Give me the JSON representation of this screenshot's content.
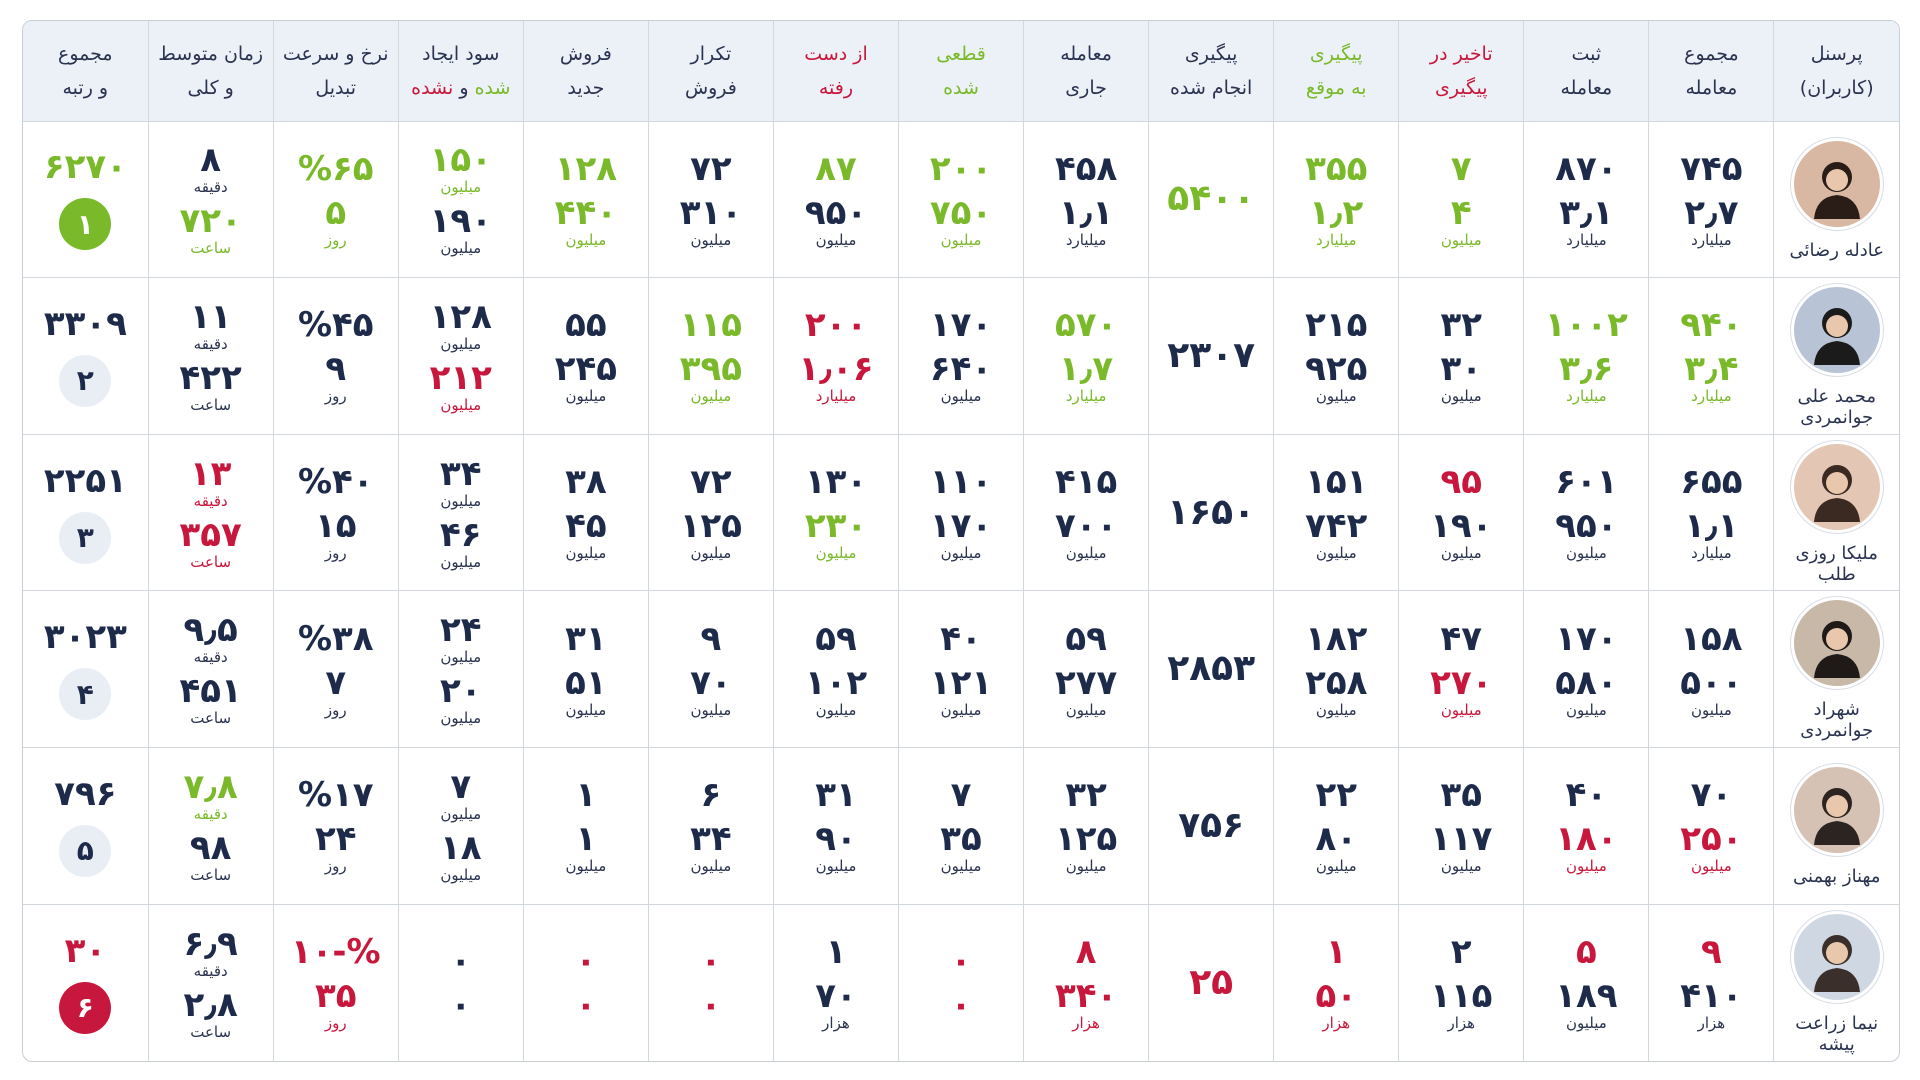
{
  "headers": {
    "person": [
      "پرسنل",
      "(کاربران)"
    ],
    "total_deals": [
      "مجموع",
      "معامله"
    ],
    "registered": [
      "ثبت",
      "معامله"
    ],
    "late_followup": [
      "تاخیر در",
      "پیگیری"
    ],
    "ontime_followup": [
      "پیگیری",
      "به موقع"
    ],
    "done_followup": [
      "پیگیری",
      "انجام شده"
    ],
    "current_deals": [
      "معامله",
      "جاری"
    ],
    "finalized": [
      "قطعی",
      "شده"
    ],
    "lost": [
      "از دست",
      "رفته"
    ],
    "repeat_sales": [
      "تکرار",
      "فروش"
    ],
    "new_sales": [
      "فروش",
      "جدید"
    ],
    "profit": {
      "line1": "سود ایجاد",
      "line2_a": "شده",
      "line2_b": " و ",
      "line2_c": "نشده"
    },
    "conversion": [
      "نرخ و سرعت",
      "تبدیل"
    ],
    "avg_time": [
      "زمان متوسط",
      "و کلی"
    ],
    "total_rank": [
      "مجموع",
      "و رتبه"
    ]
  },
  "colors": {
    "green": "#7ab929",
    "red": "#c8173c",
    "navy": "#1e2a4a",
    "rank_neutral": "#e8eef4"
  },
  "rows": [
    {
      "name": "عادله رضائی",
      "total_deals": {
        "a": "۷۴۵",
        "b": "۲٫۷",
        "u": "میلیارد",
        "ca": "",
        "cb": ""
      },
      "registered": {
        "a": "۸۷۰",
        "b": "۳٫۱",
        "u": "میلیارد",
        "ca": "",
        "cb": ""
      },
      "late_followup": {
        "a": "۷",
        "b": "۴",
        "u": "میلیون",
        "ca": "g",
        "cb": "g"
      },
      "ontime_followup": {
        "a": "۳۵۵",
        "b": "۱٫۲",
        "u": "میلیارد",
        "ca": "g",
        "cb": "g"
      },
      "done_followup": {
        "v": "۵۴۰۰",
        "c": "g"
      },
      "current_deals": {
        "a": "۴۵۸",
        "b": "۱٫۱",
        "u": "میلیارد",
        "ca": "",
        "cb": ""
      },
      "finalized": {
        "a": "۲۰۰",
        "b": "۷۵۰",
        "u": "میلیون",
        "ca": "g",
        "cb": "g"
      },
      "lost": {
        "a": "۸۷",
        "b": "۹۵۰",
        "u": "میلیون",
        "ca": "g",
        "cb": ""
      },
      "repeat_sales": {
        "a": "۷۲",
        "b": "۳۱۰",
        "u": "میلیون",
        "ca": "",
        "cb": ""
      },
      "new_sales": {
        "a": "۱۲۸",
        "b": "۴۴۰",
        "u": "میلیون",
        "ca": "g",
        "cb": "g"
      },
      "profit": {
        "a": "۱۵۰",
        "au": "میلیون",
        "b": "۱۹۰",
        "bu": "میلیون",
        "ca": "g",
        "cb": ""
      },
      "conversion": {
        "a": "%۶۵",
        "b": "۵",
        "u": "روز",
        "ca": "g",
        "cb": "g"
      },
      "avg_time": {
        "a": "۸",
        "au": "دقیقه",
        "b": "۷۲۰",
        "bu": "ساعت",
        "ca": "",
        "cb": "g"
      },
      "total": {
        "v": "۶۲۷۰",
        "rank": "۱",
        "c": "g",
        "rank_style": "green"
      }
    },
    {
      "name": "محمد علی جوانمردی",
      "total_deals": {
        "a": "۹۴۰",
        "b": "۳٫۴",
        "u": "میلیارد",
        "ca": "g",
        "cb": "g"
      },
      "registered": {
        "a": "۱۰۰۲",
        "b": "۳٫۶",
        "u": "میلیارد",
        "ca": "g",
        "cb": "g"
      },
      "late_followup": {
        "a": "۳۲",
        "b": "۳۰",
        "u": "میلیون",
        "ca": "",
        "cb": ""
      },
      "ontime_followup": {
        "a": "۲۱۵",
        "b": "۹۲۵",
        "u": "میلیون",
        "ca": "",
        "cb": ""
      },
      "done_followup": {
        "v": "۲۳۰۷",
        "c": ""
      },
      "current_deals": {
        "a": "۵۷۰",
        "b": "۱٫۷",
        "u": "میلیارد",
        "ca": "g",
        "cb": "g"
      },
      "finalized": {
        "a": "۱۷۰",
        "b": "۶۴۰",
        "u": "میلیون",
        "ca": "",
        "cb": ""
      },
      "lost": {
        "a": "۲۰۰",
        "b": "۱٫۰۶",
        "u": "میلیارد",
        "ca": "r",
        "cb": "r"
      },
      "repeat_sales": {
        "a": "۱۱۵",
        "b": "۳۹۵",
        "u": "میلیون",
        "ca": "g",
        "cb": "g"
      },
      "new_sales": {
        "a": "۵۵",
        "b": "۲۴۵",
        "u": "میلیون",
        "ca": "",
        "cb": ""
      },
      "profit": {
        "a": "۱۲۸",
        "au": "میلیون",
        "b": "۲۱۲",
        "bu": "میلیون",
        "ca": "",
        "cb": "r"
      },
      "conversion": {
        "a": "%۴۵",
        "b": "۹",
        "u": "روز",
        "ca": "",
        "cb": ""
      },
      "avg_time": {
        "a": "۱۱",
        "au": "دقیقه",
        "b": "۴۲۲",
        "bu": "ساعت",
        "ca": "",
        "cb": ""
      },
      "total": {
        "v": "۳۳۰۹",
        "rank": "۲",
        "c": "",
        "rank_style": "neutral"
      }
    },
    {
      "name": "ملیکا روزی طلب",
      "total_deals": {
        "a": "۶۵۵",
        "b": "۱٫۱",
        "u": "میلیارد",
        "ca": "",
        "cb": ""
      },
      "registered": {
        "a": "۶۰۱",
        "b": "۹۵۰",
        "u": "میلیون",
        "ca": "",
        "cb": ""
      },
      "late_followup": {
        "a": "۹۵",
        "b": "۱۹۰",
        "u": "میلیون",
        "ca": "r",
        "cb": ""
      },
      "ontime_followup": {
        "a": "۱۵۱",
        "b": "۷۴۲",
        "u": "میلیون",
        "ca": "",
        "cb": ""
      },
      "done_followup": {
        "v": "۱۶۵۰",
        "c": ""
      },
      "current_deals": {
        "a": "۴۱۵",
        "b": "۷۰۰",
        "u": "میلیون",
        "ca": "",
        "cb": ""
      },
      "finalized": {
        "a": "۱۱۰",
        "b": "۱۷۰",
        "u": "میلیون",
        "ca": "",
        "cb": ""
      },
      "lost": {
        "a": "۱۳۰",
        "b": "۲۳۰",
        "u": "میلیون",
        "ca": "",
        "cb": "g"
      },
      "repeat_sales": {
        "a": "۷۲",
        "b": "۱۲۵",
        "u": "میلیون",
        "ca": "",
        "cb": ""
      },
      "new_sales": {
        "a": "۳۸",
        "b": "۴۵",
        "u": "میلیون",
        "ca": "",
        "cb": ""
      },
      "profit": {
        "a": "۳۴",
        "au": "میلیون",
        "b": "۴۶",
        "bu": "میلیون",
        "ca": "",
        "cb": ""
      },
      "conversion": {
        "a": "%۴۰",
        "b": "۱۵",
        "u": "روز",
        "ca": "",
        "cb": ""
      },
      "avg_time": {
        "a": "۱۳",
        "au": "دقیقه",
        "b": "۳۵۷",
        "bu": "ساعت",
        "ca": "r",
        "cb": "r"
      },
      "total": {
        "v": "۲۲۵۱",
        "rank": "۳",
        "c": "",
        "rank_style": "neutral"
      }
    },
    {
      "name": "شهراد جوانمردی",
      "total_deals": {
        "a": "۱۵۸",
        "b": "۵۰۰",
        "u": "میلیون",
        "ca": "",
        "cb": ""
      },
      "registered": {
        "a": "۱۷۰",
        "b": "۵۸۰",
        "u": "میلیون",
        "ca": "",
        "cb": ""
      },
      "late_followup": {
        "a": "۴۷",
        "b": "۲۷۰",
        "u": "میلیون",
        "ca": "",
        "cb": "r"
      },
      "ontime_followup": {
        "a": "۱۸۲",
        "b": "۲۵۸",
        "u": "میلیون",
        "ca": "",
        "cb": ""
      },
      "done_followup": {
        "v": "۲۸۵۳",
        "c": ""
      },
      "current_deals": {
        "a": "۵۹",
        "b": "۲۷۷",
        "u": "میلیون",
        "ca": "",
        "cb": ""
      },
      "finalized": {
        "a": "۴۰",
        "b": "۱۲۱",
        "u": "میلیون",
        "ca": "",
        "cb": ""
      },
      "lost": {
        "a": "۵۹",
        "b": "۱۰۲",
        "u": "میلیون",
        "ca": "",
        "cb": ""
      },
      "repeat_sales": {
        "a": "۹",
        "b": "۷۰",
        "u": "میلیون",
        "ca": "",
        "cb": ""
      },
      "new_sales": {
        "a": "۳۱",
        "b": "۵۱",
        "u": "میلیون",
        "ca": "",
        "cb": ""
      },
      "profit": {
        "a": "۲۴",
        "au": "میلیون",
        "b": "۲۰",
        "bu": "میلیون",
        "ca": "",
        "cb": ""
      },
      "conversion": {
        "a": "%۳۸",
        "b": "۷",
        "u": "روز",
        "ca": "",
        "cb": ""
      },
      "avg_time": {
        "a": "۹٫۵",
        "au": "دقیقه",
        "b": "۴۵۱",
        "bu": "ساعت",
        "ca": "",
        "cb": ""
      },
      "total": {
        "v": "۳۰۲۳",
        "rank": "۴",
        "c": "",
        "rank_style": "neutral"
      }
    },
    {
      "name": "مهناز بهمنی",
      "total_deals": {
        "a": "۷۰",
        "b": "۲۵۰",
        "u": "میلیون",
        "ca": "",
        "cb": "r"
      },
      "registered": {
        "a": "۴۰",
        "b": "۱۸۰",
        "u": "میلیون",
        "ca": "",
        "cb": "r"
      },
      "late_followup": {
        "a": "۳۵",
        "b": "۱۱۷",
        "u": "میلیون",
        "ca": "",
        "cb": ""
      },
      "ontime_followup": {
        "a": "۲۲",
        "b": "۸۰",
        "u": "میلیون",
        "ca": "",
        "cb": ""
      },
      "done_followup": {
        "v": "۷۵۶",
        "c": ""
      },
      "current_deals": {
        "a": "۳۲",
        "b": "۱۲۵",
        "u": "میلیون",
        "ca": "",
        "cb": ""
      },
      "finalized": {
        "a": "۷",
        "b": "۳۵",
        "u": "میلیون",
        "ca": "",
        "cb": ""
      },
      "lost": {
        "a": "۳۱",
        "b": "۹۰",
        "u": "میلیون",
        "ca": "",
        "cb": ""
      },
      "repeat_sales": {
        "a": "۶",
        "b": "۳۴",
        "u": "میلیون",
        "ca": "",
        "cb": ""
      },
      "new_sales": {
        "a": "۱",
        "b": "۱",
        "u": "میلیون",
        "ca": "",
        "cb": ""
      },
      "profit": {
        "a": "۷",
        "au": "میلیون",
        "b": "۱۸",
        "bu": "میلیون",
        "ca": "",
        "cb": ""
      },
      "conversion": {
        "a": "%۱۷",
        "b": "۲۴",
        "u": "روز",
        "ca": "",
        "cb": ""
      },
      "avg_time": {
        "a": "۷٫۸",
        "au": "دقیقه",
        "b": "۹۸",
        "bu": "ساعت",
        "ca": "g",
        "cb": ""
      },
      "total": {
        "v": "۷۹۶",
        "rank": "۵",
        "c": "",
        "rank_style": "neutral"
      }
    },
    {
      "name": "نیما زراعت پیشه",
      "total_deals": {
        "a": "۹",
        "b": "۴۱۰",
        "u": "هزار",
        "ca": "r",
        "cb": ""
      },
      "registered": {
        "a": "۵",
        "b": "۱۸۹",
        "u": "میلیون",
        "ca": "r",
        "cb": ""
      },
      "late_followup": {
        "a": "۲",
        "b": "۱۱۵",
        "u": "هزار",
        "ca": "",
        "cb": ""
      },
      "ontime_followup": {
        "a": "۱",
        "b": "۵۰",
        "u": "هزار",
        "ca": "r",
        "cb": "r"
      },
      "done_followup": {
        "v": "۲۵",
        "c": "r"
      },
      "current_deals": {
        "a": "۸",
        "b": "۳۴۰",
        "u": "هزار",
        "ca": "r",
        "cb": "r"
      },
      "finalized": {
        "a": "۰",
        "b": "۰",
        "u": "",
        "ca": "r",
        "cb": "r"
      },
      "lost": {
        "a": "۱",
        "b": "۷۰",
        "u": "هزار",
        "ca": "",
        "cb": ""
      },
      "repeat_sales": {
        "a": "۰",
        "b": "۰",
        "u": "",
        "ca": "r",
        "cb": "r"
      },
      "new_sales": {
        "a": "۰",
        "b": "۰",
        "u": "",
        "ca": "r",
        "cb": "r"
      },
      "profit": {
        "a": "۰",
        "au": "",
        "b": "۰",
        "bu": "",
        "ca": "",
        "cb": ""
      },
      "conversion": {
        "a": "%-۱۰",
        "b": "۳۵",
        "u": "روز",
        "ca": "r",
        "cb": "r"
      },
      "avg_time": {
        "a": "۶٫۹",
        "au": "دقیقه",
        "b": "۲٫۸",
        "bu": "ساعت",
        "ca": "",
        "cb": ""
      },
      "total": {
        "v": "۳۰",
        "rank": "۶",
        "c": "r",
        "rank_style": "red"
      }
    }
  ]
}
